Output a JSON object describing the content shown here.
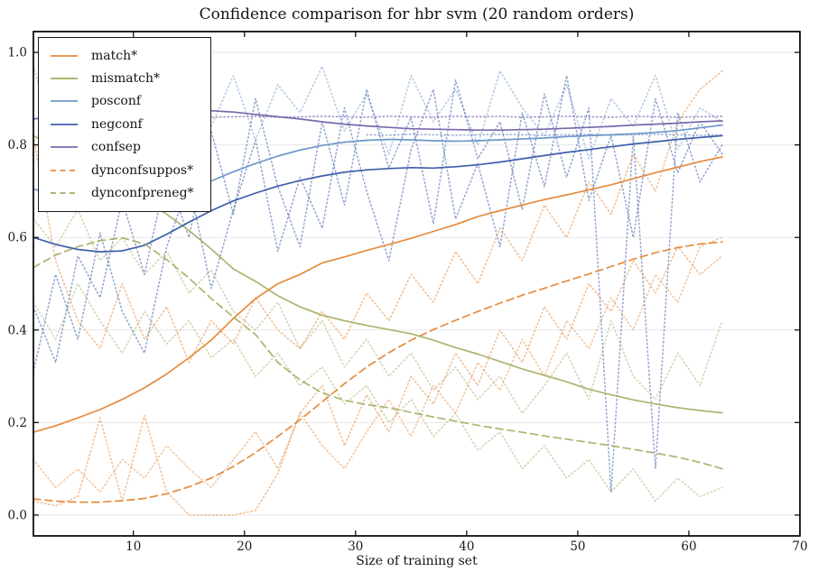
{
  "chart_data": {
    "type": "line",
    "title": "Confidence comparison for hbr svm (20 random orders)",
    "xlabel": "Size of training set",
    "ylabel": "",
    "xlim": [
      1,
      70
    ],
    "ylim": [
      -0.045,
      1.045
    ],
    "xticks": [
      10,
      20,
      30,
      40,
      50,
      60,
      70
    ],
    "xtick_labels": [
      "10",
      "20",
      "30",
      "40",
      "50",
      "60",
      "70"
    ],
    "yticks": [
      0.0,
      0.2,
      0.4,
      0.6,
      0.8,
      1.0
    ],
    "ytick_labels": [
      "0.0",
      "0.2",
      "0.4",
      "0.6",
      "0.8",
      "1.0"
    ],
    "grid": "horizontal",
    "grid_color": "#e8e8e8",
    "axis_color": "#000000",
    "tick_label_color": "#1a1a1a",
    "palette": {
      "orange": "#e58b3e",
      "olive": "#a2ad60",
      "lightblue": "#6d98c9",
      "blue": "#3f5fab",
      "purple": "#7a68ae"
    },
    "legend": {
      "position": "upper-left",
      "entries": [
        {
          "label": "match*",
          "color": "orange",
          "dash": "solid"
        },
        {
          "label": "mismatch*",
          "color": "olive",
          "dash": "solid"
        },
        {
          "label": "posconf",
          "color": "lightblue",
          "dash": "solid"
        },
        {
          "label": "negconf",
          "color": "blue",
          "dash": "solid"
        },
        {
          "label": "confsep",
          "color": "purple",
          "dash": "solid"
        },
        {
          "label": "dynconfsuppos*",
          "color": "orange",
          "dash": "dashed"
        },
        {
          "label": "dynconfpreneg*",
          "color": "olive",
          "dash": "dashed"
        }
      ]
    },
    "series": [
      {
        "name": "run-lightblue-1",
        "role": "individual-run",
        "color": "lightblue",
        "dash": "dotted",
        "alpha": 0.5,
        "x": {
          "from": 1,
          "step": 2,
          "count": 32
        },
        "y": [
          0.97,
          0.8,
          0.92,
          0.75,
          0.88,
          0.96,
          0.78,
          0.9,
          0.84,
          0.95,
          0.81,
          0.93,
          0.87,
          0.97,
          0.83,
          0.91,
          0.78,
          0.95,
          0.85,
          0.92,
          0.8,
          0.96,
          0.88,
          0.82,
          0.93,
          0.77,
          0.9,
          0.84,
          0.95,
          0.79,
          0.88,
          0.85
        ]
      },
      {
        "name": "run-blue-1",
        "role": "individual-run",
        "color": "blue",
        "dash": "dotted",
        "alpha": 0.55,
        "x": {
          "from": 1,
          "step": 2,
          "count": 32
        },
        "y": [
          0.31,
          0.52,
          0.38,
          0.61,
          0.44,
          0.35,
          0.58,
          0.72,
          0.49,
          0.66,
          0.81,
          0.57,
          0.73,
          0.62,
          0.88,
          0.7,
          0.55,
          0.79,
          0.92,
          0.64,
          0.76,
          0.58,
          0.87,
          0.71,
          0.95,
          0.68,
          0.82,
          0.6,
          0.9,
          0.74,
          0.85,
          0.78
        ]
      },
      {
        "name": "run-blue-2",
        "role": "individual-run",
        "color": "blue",
        "dash": "dotted",
        "alpha": 0.55,
        "x": {
          "from": 1,
          "step": 2,
          "count": 32
        },
        "y": [
          0.45,
          0.33,
          0.56,
          0.47,
          0.68,
          0.52,
          0.74,
          0.6,
          0.83,
          0.65,
          0.9,
          0.71,
          0.58,
          0.85,
          0.67,
          0.92,
          0.75,
          0.86,
          0.63,
          0.94,
          0.77,
          0.85,
          0.66,
          0.91,
          0.73,
          0.88,
          0.05,
          0.82,
          0.1,
          0.87,
          0.72,
          0.8
        ]
      },
      {
        "name": "run-blue-flat",
        "role": "individual-run",
        "color": "blue",
        "dash": "dotted",
        "alpha": 0.5,
        "x": {
          "from": 31,
          "step": 2,
          "count": 17
        },
        "y": [
          0.822,
          0.821,
          0.823,
          0.822,
          0.821,
          0.822,
          0.823,
          0.822,
          0.821,
          0.822,
          0.823,
          0.821,
          0.822,
          0.823,
          0.822,
          0.821,
          0.822
        ]
      },
      {
        "name": "run-purple-flat",
        "role": "individual-run",
        "color": "purple",
        "dash": "dotted",
        "alpha": 0.7,
        "x": {
          "from": 15,
          "step": 2,
          "count": 25
        },
        "y": [
          0.862,
          0.86,
          0.861,
          0.862,
          0.86,
          0.861,
          0.862,
          0.861,
          0.86,
          0.862,
          0.861,
          0.86,
          0.862,
          0.861,
          0.862,
          0.86,
          0.861,
          0.862,
          0.861,
          0.86,
          0.862,
          0.861,
          0.86,
          0.861,
          0.862
        ]
      },
      {
        "name": "run-orange-1",
        "role": "individual-run",
        "color": "orange",
        "dash": "dotted",
        "alpha": 0.55,
        "x": {
          "from": 1,
          "step": 2,
          "count": 32
        },
        "y": [
          0.03,
          0.02,
          0.04,
          0.21,
          0.03,
          0.215,
          0.05,
          0.0,
          0.0,
          0.0,
          0.01,
          0.09,
          0.22,
          0.28,
          0.15,
          0.26,
          0.18,
          0.3,
          0.24,
          0.35,
          0.28,
          0.4,
          0.33,
          0.45,
          0.38,
          0.5,
          0.44,
          0.55,
          0.48,
          0.58,
          0.52,
          0.56
        ]
      },
      {
        "name": "run-orange-2",
        "role": "individual-run",
        "color": "orange",
        "dash": "dotted",
        "alpha": 0.55,
        "x": {
          "from": 1,
          "step": 2,
          "count": 32
        },
        "y": [
          0.82,
          0.55,
          0.42,
          0.36,
          0.5,
          0.38,
          0.45,
          0.33,
          0.42,
          0.37,
          0.47,
          0.4,
          0.36,
          0.44,
          0.38,
          0.48,
          0.42,
          0.52,
          0.46,
          0.57,
          0.5,
          0.62,
          0.55,
          0.67,
          0.6,
          0.72,
          0.65,
          0.78,
          0.7,
          0.85,
          0.92,
          0.96
        ]
      },
      {
        "name": "run-orange-3",
        "role": "individual-run",
        "color": "orange",
        "dash": "dotted",
        "alpha": 0.5,
        "x": {
          "from": 1,
          "step": 2,
          "count": 32
        },
        "y": [
          0.12,
          0.06,
          0.1,
          0.05,
          0.12,
          0.08,
          0.15,
          0.1,
          0.06,
          0.12,
          0.18,
          0.1,
          0.22,
          0.15,
          0.1,
          0.18,
          0.25,
          0.17,
          0.28,
          0.22,
          0.33,
          0.27,
          0.38,
          0.3,
          0.42,
          0.36,
          0.47,
          0.4,
          0.52,
          0.46,
          0.58,
          0.6
        ]
      },
      {
        "name": "run-olive-1",
        "role": "individual-run",
        "color": "olive",
        "dash": "dotted",
        "alpha": 0.5,
        "x": {
          "from": 1,
          "step": 2,
          "count": 32
        },
        "y": [
          0.46,
          0.38,
          0.5,
          0.42,
          0.35,
          0.44,
          0.37,
          0.42,
          0.34,
          0.38,
          0.3,
          0.35,
          0.28,
          0.32,
          0.24,
          0.28,
          0.2,
          0.25,
          0.17,
          0.22,
          0.14,
          0.18,
          0.1,
          0.15,
          0.08,
          0.12,
          0.05,
          0.1,
          0.03,
          0.08,
          0.04,
          0.06
        ]
      },
      {
        "name": "run-olive-2",
        "role": "individual-run",
        "color": "olive",
        "dash": "dotted",
        "alpha": 0.5,
        "x": {
          "from": 1,
          "step": 2,
          "count": 32
        },
        "y": [
          0.64,
          0.58,
          0.66,
          0.55,
          0.6,
          0.52,
          0.57,
          0.48,
          0.53,
          0.44,
          0.4,
          0.46,
          0.36,
          0.42,
          0.32,
          0.38,
          0.3,
          0.35,
          0.27,
          0.32,
          0.25,
          0.3,
          0.22,
          0.28,
          0.35,
          0.25,
          0.42,
          0.3,
          0.25,
          0.35,
          0.28,
          0.42
        ]
      },
      {
        "name": "mismatch",
        "role": "mean",
        "color": "olive",
        "dash": "solid",
        "alpha": 0.9,
        "x": {
          "from": 1,
          "step": 2,
          "count": 32
        },
        "y": [
          0.82,
          0.793,
          0.765,
          0.737,
          0.71,
          0.682,
          0.65,
          0.615,
          0.575,
          0.532,
          0.505,
          0.474,
          0.45,
          0.432,
          0.42,
          0.41,
          0.401,
          0.392,
          0.378,
          0.362,
          0.348,
          0.332,
          0.316,
          0.302,
          0.288,
          0.272,
          0.26,
          0.249,
          0.24,
          0.232,
          0.226,
          0.221
        ]
      },
      {
        "name": "match",
        "role": "mean",
        "color": "orange",
        "dash": "solid",
        "alpha": 1,
        "x": {
          "from": 1,
          "step": 2,
          "count": 32
        },
        "y": [
          0.179,
          0.193,
          0.21,
          0.228,
          0.25,
          0.275,
          0.305,
          0.34,
          0.378,
          0.425,
          0.468,
          0.5,
          0.52,
          0.545,
          0.558,
          0.572,
          0.585,
          0.598,
          0.613,
          0.628,
          0.645,
          0.658,
          0.67,
          0.682,
          0.692,
          0.703,
          0.714,
          0.727,
          0.74,
          0.752,
          0.764,
          0.774
        ]
      },
      {
        "name": "posconf",
        "role": "mean",
        "color": "lightblue",
        "dash": "solid",
        "alpha": 1,
        "x": {
          "from": 1,
          "step": 2,
          "count": 32
        },
        "y": [
          0.705,
          0.69,
          0.679,
          0.671,
          0.669,
          0.675,
          0.688,
          0.704,
          0.722,
          0.742,
          0.76,
          0.776,
          0.789,
          0.799,
          0.806,
          0.81,
          0.812,
          0.811,
          0.809,
          0.808,
          0.809,
          0.811,
          0.813,
          0.815,
          0.818,
          0.82,
          0.822,
          0.824,
          0.827,
          0.831,
          0.837,
          0.843
        ]
      },
      {
        "name": "negconf",
        "role": "mean",
        "color": "blue",
        "dash": "solid",
        "alpha": 1,
        "x": {
          "from": 1,
          "step": 2,
          "count": 32
        },
        "y": [
          0.6,
          0.585,
          0.574,
          0.569,
          0.571,
          0.583,
          0.607,
          0.633,
          0.658,
          0.679,
          0.696,
          0.711,
          0.723,
          0.733,
          0.741,
          0.746,
          0.749,
          0.751,
          0.75,
          0.753,
          0.757,
          0.763,
          0.77,
          0.777,
          0.784,
          0.79,
          0.796,
          0.802,
          0.807,
          0.812,
          0.816,
          0.82
        ]
      },
      {
        "name": "confsep",
        "role": "mean",
        "color": "purple",
        "dash": "solid",
        "alpha": 1,
        "x": {
          "from": 1,
          "step": 2,
          "count": 32
        },
        "y": [
          0.856,
          0.861,
          0.865,
          0.869,
          0.872,
          0.874,
          0.875,
          0.875,
          0.874,
          0.871,
          0.866,
          0.861,
          0.856,
          0.85,
          0.845,
          0.841,
          0.838,
          0.835,
          0.834,
          0.833,
          0.832,
          0.832,
          0.833,
          0.834,
          0.836,
          0.838,
          0.84,
          0.843,
          0.845,
          0.847,
          0.85,
          0.852
        ]
      },
      {
        "name": "dynconfsuppos",
        "role": "mean",
        "color": "orange",
        "dash": "dashed",
        "alpha": 1,
        "x": {
          "from": 1,
          "step": 2,
          "count": 32
        },
        "y": [
          0.035,
          0.03,
          0.028,
          0.028,
          0.031,
          0.036,
          0.046,
          0.061,
          0.08,
          0.105,
          0.135,
          0.17,
          0.206,
          0.245,
          0.284,
          0.32,
          0.351,
          0.378,
          0.401,
          0.421,
          0.44,
          0.458,
          0.475,
          0.49,
          0.506,
          0.521,
          0.537,
          0.553,
          0.567,
          0.578,
          0.586,
          0.59
        ]
      },
      {
        "name": "dynconfpreneg",
        "role": "mean",
        "color": "olive",
        "dash": "dashed",
        "alpha": 0.9,
        "x": {
          "from": 1,
          "step": 2,
          "count": 32
        },
        "y": [
          0.535,
          0.562,
          0.58,
          0.593,
          0.599,
          0.586,
          0.552,
          0.512,
          0.468,
          0.428,
          0.39,
          0.33,
          0.292,
          0.264,
          0.248,
          0.239,
          0.232,
          0.222,
          0.212,
          0.203,
          0.194,
          0.186,
          0.179,
          0.171,
          0.164,
          0.157,
          0.15,
          0.142,
          0.134,
          0.125,
          0.114,
          0.1
        ]
      }
    ]
  }
}
